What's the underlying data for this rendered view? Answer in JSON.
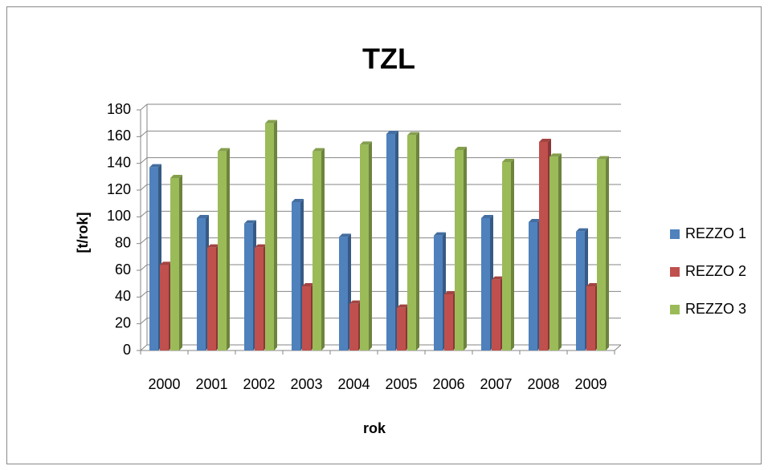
{
  "chart_data": {
    "type": "bar",
    "title": "TZL",
    "x_label": "rok",
    "y_label": "[t/rok]",
    "categories": [
      "2000",
      "2001",
      "2002",
      "2003",
      "2004",
      "2005",
      "2006",
      "2007",
      "2008",
      "2009"
    ],
    "series": [
      {
        "name": "REZZO 1",
        "color": "#4f81bd",
        "values": [
          137,
          99,
          95,
          111,
          85,
          162,
          86,
          99,
          96,
          89
        ]
      },
      {
        "name": "REZZO 2",
        "color": "#c0504d",
        "values": [
          64,
          77,
          77,
          48,
          35,
          32,
          42,
          53,
          156,
          48
        ]
      },
      {
        "name": "REZZO 3",
        "color": "#9bbb59",
        "values": [
          129,
          149,
          170,
          149,
          154,
          161,
          150,
          141,
          145,
          143
        ]
      }
    ],
    "ylim": [
      0,
      180
    ],
    "yticks": [
      0,
      20,
      40,
      60,
      80,
      100,
      120,
      140,
      160,
      180
    ],
    "grid": true
  }
}
